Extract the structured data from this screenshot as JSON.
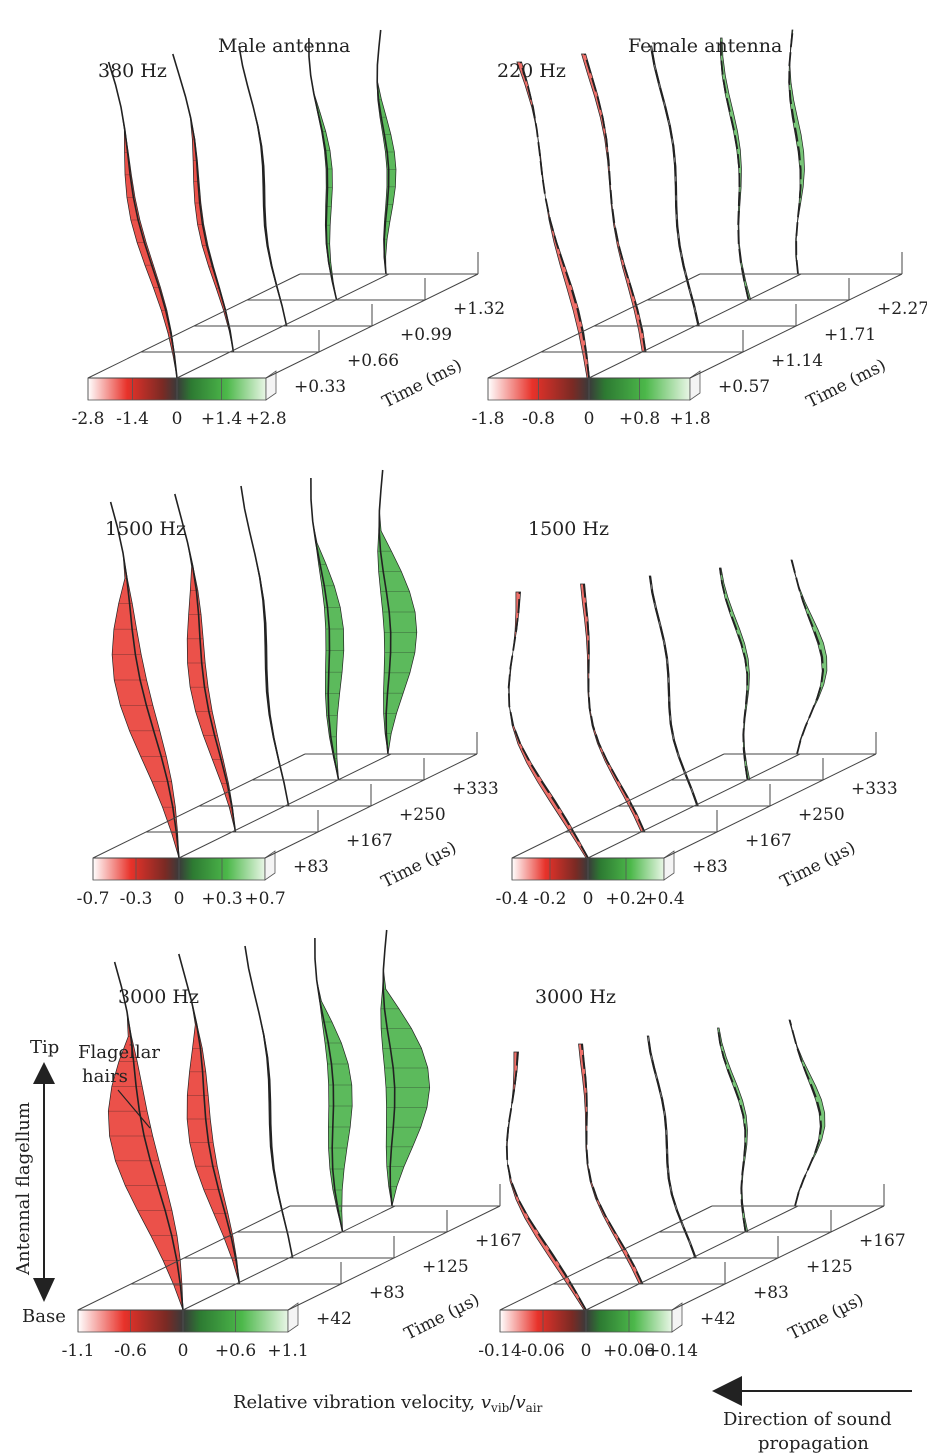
{
  "colors": {
    "negative": "#e8322a",
    "negative_light": "#f7c9c0",
    "center": "#4a4a4a",
    "positive": "#3fae3f",
    "positive_light": "#cfeccc",
    "stem": "#222222"
  },
  "panels": [
    {
      "freq": "380 Hz",
      "header": "Male antenna",
      "sex": "male",
      "times": [
        "+0.33",
        "+0.66",
        "+0.99",
        "+1.32"
      ],
      "time_label": "Time (ms)",
      "scale": [
        "-2.8",
        "-1.4",
        "0",
        "+1.4",
        "+2.8"
      ],
      "amplitudes": [
        -0.9,
        -0.45,
        0,
        0.45,
        0.9
      ]
    },
    {
      "freq": "220 Hz",
      "header": "Female antenna",
      "sex": "female",
      "times": [
        "+0.57",
        "+1.14",
        "+1.71",
        "+2.27"
      ],
      "time_label": "Time (ms)",
      "scale": [
        "-1.8",
        "-0.8",
        "0",
        "+0.8",
        "+1.8"
      ],
      "amplitudes": [
        -0.9,
        -0.45,
        0,
        0.45,
        0.9
      ]
    },
    {
      "freq": "1500 Hz",
      "header": "",
      "sex": "male",
      "times": [
        "+83",
        "+167",
        "+250",
        "+333"
      ],
      "time_label": "Time (µs)",
      "scale": [
        "-0.7",
        "-0.3",
        "0",
        "+0.3",
        "+0.7"
      ],
      "amplitudes": [
        -0.9,
        -0.45,
        0,
        0.45,
        0.9
      ]
    },
    {
      "freq": "1500 Hz",
      "header": "",
      "sex": "female",
      "times": [
        "+83",
        "+167",
        "+250",
        "+333"
      ],
      "time_label": "Time (µs)",
      "scale": [
        "-0.4",
        "-0.2",
        "0",
        "+0.2",
        "+0.4"
      ],
      "amplitudes": [
        -0.9,
        -0.45,
        0,
        0.45,
        0.9
      ]
    },
    {
      "freq": "3000 Hz",
      "header": "",
      "sex": "male",
      "times": [
        "+42",
        "+83",
        "+125",
        "+167"
      ],
      "time_label": "Time (µs)",
      "scale": [
        "-1.1",
        "-0.6",
        "0",
        "+0.6",
        "+1.1"
      ],
      "amplitudes": [
        -0.9,
        -0.45,
        0,
        0.45,
        0.9
      ]
    },
    {
      "freq": "3000 Hz",
      "header": "",
      "sex": "female",
      "times": [
        "+42",
        "+83",
        "+125",
        "+167"
      ],
      "time_label": "Time (µs)",
      "scale": [
        "-0.14",
        "-0.06",
        "0",
        "+0.06",
        "+0.14"
      ],
      "amplitudes": [
        -0.9,
        -0.45,
        0,
        0.45,
        0.9
      ]
    }
  ],
  "axis": {
    "tip": "Tip",
    "base": "Base",
    "flagellum": "Antennal flagellum",
    "hairs_line1": "Flagellar",
    "hairs_line2": "hairs"
  },
  "caption": {
    "prefix": "Relative vibration velocity, ",
    "v": "v",
    "vib": "vib",
    "slash": "/",
    "air": "air"
  },
  "direction": {
    "line1": "Direction of sound",
    "line2": "propagation"
  }
}
